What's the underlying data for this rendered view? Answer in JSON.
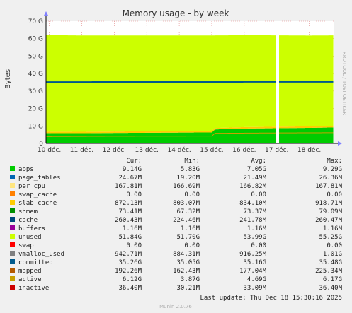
{
  "chart_data": {
    "type": "area",
    "title": "Memory usage - by week",
    "ylabel": "Bytes",
    "side_label": "RRDTOOL / TOBI OETIKER",
    "x_ticks": [
      "10 déc.",
      "11 déc.",
      "12 déc.",
      "13 déc.",
      "14 déc.",
      "15 déc.",
      "16 déc.",
      "17 déc.",
      "18 déc."
    ],
    "y_ticks": [
      "0",
      "10 G",
      "20 G",
      "30 G",
      "40 G",
      "50 G",
      "60 G",
      "70 G"
    ],
    "ylim": [
      0,
      70
    ],
    "y_unit": "GB",
    "x_range_days": [
      9.9,
      18.75
    ],
    "gap_days": [
      17.0,
      17.05
    ],
    "grid": true,
    "columns": [
      "Cur:",
      "Min:",
      "Avg:",
      "Max:"
    ],
    "legend": [
      {
        "name": "apps",
        "color": "#00cc00",
        "values": [
          "9.14G",
          "5.83G",
          "7.05G",
          "9.29G"
        ]
      },
      {
        "name": "page_tables",
        "color": "#0066b3",
        "values": [
          "24.67M",
          "19.20M",
          "21.49M",
          "26.36M"
        ]
      },
      {
        "name": "per_cpu",
        "color": "#ffe680",
        "values": [
          "167.81M",
          "166.69M",
          "166.82M",
          "167.81M"
        ]
      },
      {
        "name": "swap_cache",
        "color": "#ff8000",
        "values": [
          "0.00",
          "0.00",
          "0.00",
          "0.00"
        ]
      },
      {
        "name": "slab_cache",
        "color": "#ffcc00",
        "values": [
          "872.13M",
          "803.07M",
          "834.10M",
          "918.71M"
        ]
      },
      {
        "name": "shmem",
        "color": "#008f00",
        "values": [
          "73.41M",
          "67.32M",
          "73.37M",
          "79.09M"
        ]
      },
      {
        "name": "cache",
        "color": "#00487d",
        "values": [
          "260.43M",
          "224.46M",
          "241.78M",
          "260.47M"
        ]
      },
      {
        "name": "buffers",
        "color": "#990099",
        "values": [
          "1.16M",
          "1.16M",
          "1.16M",
          "1.16M"
        ]
      },
      {
        "name": "unused",
        "color": "#ccff00",
        "values": [
          "51.84G",
          "51.70G",
          "53.99G",
          "55.25G"
        ]
      },
      {
        "name": "swap",
        "color": "#ff0000",
        "values": [
          "0.00",
          "0.00",
          "0.00",
          "0.00"
        ]
      },
      {
        "name": "vmalloc_used",
        "color": "#808080",
        "values": [
          "942.71M",
          "884.31M",
          "916.25M",
          "1.01G"
        ]
      },
      {
        "name": "committed",
        "color": "#005a8c",
        "values": [
          "35.26G",
          "35.05G",
          "35.16G",
          "35.48G"
        ]
      },
      {
        "name": "mapped",
        "color": "#b35900",
        "values": [
          "192.26M",
          "162.43M",
          "177.04M",
          "225.34M"
        ]
      },
      {
        "name": "active",
        "color": "#c8a000",
        "values": [
          "6.12G",
          "3.87G",
          "4.69G",
          "6.17G"
        ]
      },
      {
        "name": "inactive",
        "color": "#cc0000",
        "values": [
          "36.40M",
          "30.21M",
          "33.09M",
          "36.40M"
        ]
      }
    ],
    "series": [
      {
        "name": "apps",
        "kind": "area",
        "color": "#00cc00",
        "points": [
          [
            9.9,
            5.9
          ],
          [
            11.0,
            5.85
          ],
          [
            12.0,
            6.0
          ],
          [
            13.0,
            6.1
          ],
          [
            14.0,
            6.2
          ],
          [
            15.0,
            6.3
          ],
          [
            15.1,
            8.0
          ],
          [
            16.0,
            8.5
          ],
          [
            17.0,
            8.7
          ],
          [
            18.0,
            8.9
          ],
          [
            18.75,
            9.14
          ]
        ]
      },
      {
        "name": "slab_cache",
        "kind": "area",
        "color": "#ffcc00",
        "points": [
          [
            9.9,
            0.85
          ],
          [
            12.0,
            0.82
          ],
          [
            15.0,
            0.83
          ],
          [
            16.0,
            0.84
          ],
          [
            17.0,
            0.87
          ],
          [
            18.75,
            0.87
          ]
        ]
      },
      {
        "name": "unused",
        "kind": "area",
        "color": "#ccff00",
        "points": [
          [
            9.9,
            55.25
          ],
          [
            12.0,
            55.0
          ],
          [
            15.0,
            54.7
          ],
          [
            15.1,
            53.0
          ],
          [
            16.0,
            52.6
          ],
          [
            17.0,
            52.3
          ],
          [
            18.0,
            52.0
          ],
          [
            18.75,
            51.84
          ]
        ]
      },
      {
        "name": "committed",
        "kind": "line",
        "color": "#005a8c",
        "points": [
          [
            9.9,
            35.16
          ],
          [
            18.75,
            35.26
          ]
        ]
      },
      {
        "name": "active",
        "kind": "line",
        "color": "#c8a000",
        "points": [
          [
            9.9,
            3.9
          ],
          [
            12.0,
            4.1
          ],
          [
            15.0,
            4.2
          ],
          [
            15.1,
            5.8
          ],
          [
            17.0,
            6.0
          ],
          [
            18.75,
            6.12
          ]
        ]
      }
    ]
  },
  "footer": {
    "last_update": "Last update: Thu Dec 18 15:30:16 2025",
    "munin": "Munin 2.0.76"
  }
}
